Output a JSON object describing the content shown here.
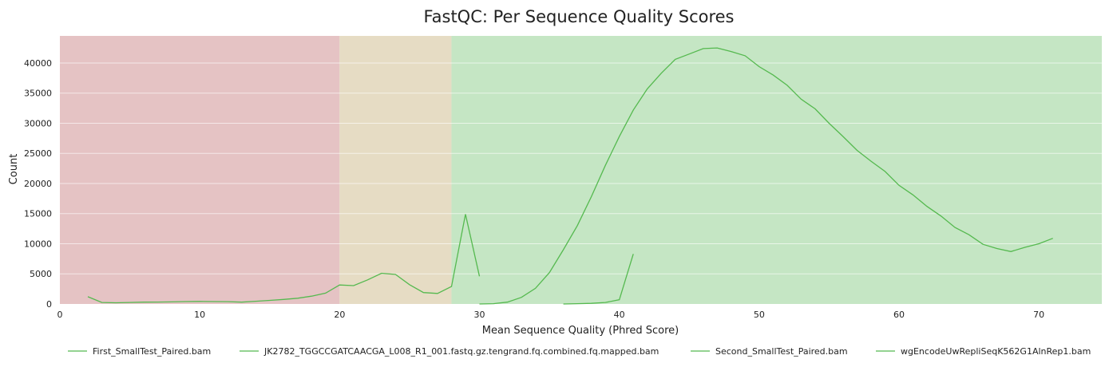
{
  "chart_data": {
    "type": "line",
    "title": "FastQC: Per Sequence Quality Scores",
    "xlabel": "Mean Sequence Quality (Phred Score)",
    "ylabel": "Count",
    "xlim": [
      0,
      74.5
    ],
    "ylim": [
      0,
      44500
    ],
    "xticks": [
      0,
      10,
      20,
      30,
      40,
      50,
      60,
      70
    ],
    "yticks": [
      0,
      5000,
      10000,
      15000,
      20000,
      25000,
      30000,
      35000,
      40000
    ],
    "grid": true,
    "legend_position": "bottom",
    "line_color": "#55b94f",
    "bands": [
      {
        "from": 0,
        "to": 20,
        "color": "#e5c3c4"
      },
      {
        "from": 20,
        "to": 28,
        "color": "#e6dcc4"
      },
      {
        "from": 28,
        "to": 74.5,
        "color": "#c5e6c4"
      }
    ],
    "series": [
      {
        "name": "First_SmallTest_Paired.bam",
        "x": [
          2,
          3,
          4,
          5,
          6,
          7,
          8,
          9,
          10,
          11,
          12,
          13,
          14,
          15,
          16,
          17,
          18,
          19,
          20,
          21,
          22,
          23,
          24,
          25,
          26,
          27,
          28,
          29,
          30
        ],
        "y": [
          1200,
          250,
          200,
          250,
          300,
          320,
          350,
          400,
          420,
          400,
          380,
          300,
          450,
          600,
          750,
          950,
          1300,
          1800,
          3150,
          3050,
          4000,
          5100,
          4900,
          3200,
          1900,
          1750,
          2900,
          14900,
          4600
        ]
      },
      {
        "name": "JK2782_TGGCCGATCAACGA_L008_R1_001.fastq.gz.tengrand.fq.combined.fq.mapped.bam",
        "x": [
          30,
          31,
          32,
          33,
          34,
          35,
          36,
          37,
          38,
          39,
          40,
          41,
          42,
          43,
          44,
          45,
          46,
          47,
          48,
          49,
          50,
          51,
          52,
          53,
          54,
          55,
          56,
          57,
          58,
          59,
          60,
          61,
          62,
          63,
          64,
          65,
          66,
          67,
          68,
          69,
          70,
          71
        ],
        "y": [
          0,
          50,
          300,
          1100,
          2600,
          5200,
          9000,
          13000,
          17800,
          23000,
          27800,
          32200,
          35700,
          38300,
          40600,
          41500,
          42400,
          42500,
          41900,
          41200,
          39400,
          38000,
          36300,
          34000,
          32400,
          30000,
          27800,
          25500,
          23700,
          22000,
          19700,
          18100,
          16200,
          14600,
          12700,
          11500,
          9900,
          9200,
          8700,
          9400,
          10000,
          10900
        ]
      },
      {
        "name": "Second_SmallTest_Paired.bam",
        "x": [
          36,
          37,
          38,
          39,
          40,
          41
        ],
        "y": [
          0,
          50,
          100,
          250,
          700,
          8300
        ]
      },
      {
        "name": "wgEncodeUwRepliSeqK562G1AlnRep1.bam",
        "x": [],
        "y": []
      }
    ]
  }
}
